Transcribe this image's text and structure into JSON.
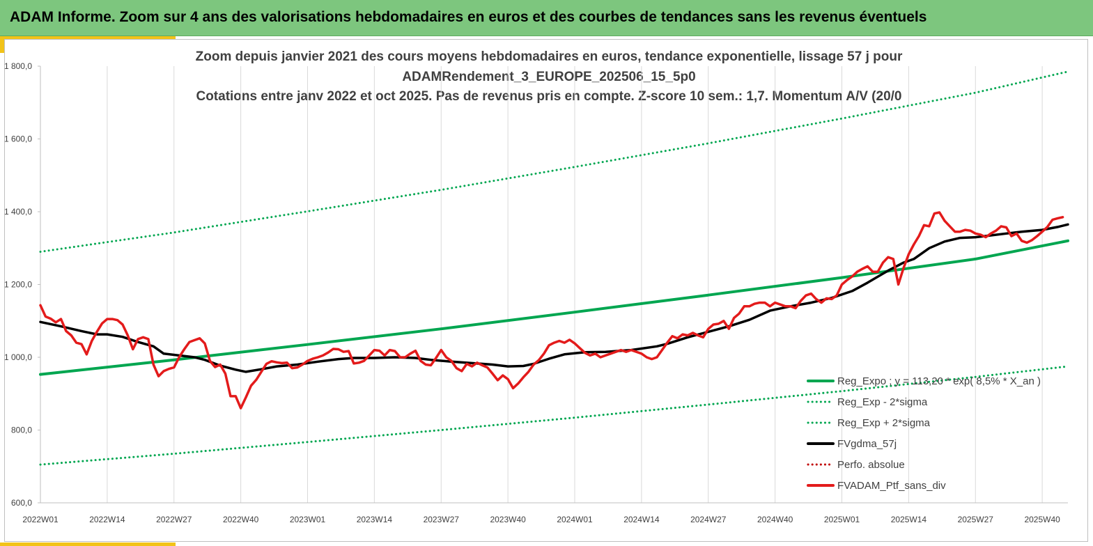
{
  "header": {
    "title": "ADAM Informe. Zoom sur 4 ans des valorisations hebdomadaires en euros et des courbes de tendances sans les revenus éventuels"
  },
  "colors": {
    "header_bg": "#7dc67e",
    "accent": "#f2c318",
    "trend": "#00a650",
    "gdma": "#000000",
    "ptf": "#e31b1b",
    "perfo": "#c00000"
  },
  "chart_data": {
    "type": "line",
    "title_lines": [
      "Zoom depuis janvier 2021 des cours moyens hebdomadaires  en euros, tendance exponentielle, lissage 57 j pour",
      "ADAMRendement_3_EUROPE_202506_15_5p0",
      "Cotations entre janv 2022 et oct 2025. Pas de revenus pris en compte. Z-score 10 sem.: 1,7. Momentum A/V (20/0"
    ],
    "y_ticks": [
      "600,0",
      "800,0",
      "1 000,0",
      "1 200,0",
      "1 400,0",
      "1 600,0",
      "1 800,0"
    ],
    "ylim": [
      600,
      1800
    ],
    "x_ticks": [
      "2022W01",
      "2022W14",
      "2022W27",
      "2022W40",
      "2023W01",
      "2023W14",
      "2023W27",
      "2023W40",
      "2024W01",
      "2024W14",
      "2024W27",
      "2024W40",
      "2025W01",
      "2025W14",
      "2025W27",
      "2025W40"
    ],
    "x_tick_weeks": [
      0,
      13,
      26,
      39,
      52,
      65,
      78,
      91,
      104,
      117,
      130,
      143,
      156,
      169,
      182,
      195
    ],
    "x_max_week": 200,
    "grid": "vertical",
    "legend": [
      {
        "key": "reg_expo",
        "label": "Reg_Expo ; y = 113,20 * exp( 8,5% *  X_an )",
        "style": "solid",
        "color": "#00a650"
      },
      {
        "key": "minus",
        "label": "Reg_Exp - 2*sigma",
        "style": "dotted",
        "color": "#00a650"
      },
      {
        "key": "plus",
        "label": "Reg_Exp + 2*sigma",
        "style": "dotted",
        "color": "#00a650"
      },
      {
        "key": "gdma",
        "label": "FVgdma_57j",
        "style": "solid",
        "color": "#000000"
      },
      {
        "key": "perfo",
        "label": "Perfo. absolue",
        "style": "dotted",
        "color": "#c00000"
      },
      {
        "key": "ptf",
        "label": "FVADAM_Ptf_sans_div",
        "style": "solid",
        "color": "#e31b1b"
      }
    ],
    "series": [
      {
        "key": "reg_expo",
        "name": "Reg_Expo",
        "style": "solid",
        "color": "#00a650",
        "width": 4,
        "points": [
          [
            0,
            953
          ],
          [
            26,
            993
          ],
          [
            52,
            1035
          ],
          [
            78,
            1078
          ],
          [
            104,
            1124
          ],
          [
            130,
            1171
          ],
          [
            156,
            1219
          ],
          [
            182,
            1270
          ],
          [
            200,
            1320
          ]
        ]
      },
      {
        "key": "plus",
        "name": "Reg_Exp + 2*sigma",
        "style": "dotted",
        "color": "#00a650",
        "width": 3,
        "points": [
          [
            0,
            1290
          ],
          [
            26,
            1343
          ],
          [
            52,
            1401
          ],
          [
            78,
            1460
          ],
          [
            104,
            1523
          ],
          [
            130,
            1588
          ],
          [
            156,
            1656
          ],
          [
            182,
            1727
          ],
          [
            200,
            1785
          ]
        ]
      },
      {
        "key": "minus",
        "name": "Reg_Exp - 2*sigma",
        "style": "dotted",
        "color": "#00a650",
        "width": 3,
        "points": [
          [
            0,
            705
          ],
          [
            26,
            735
          ],
          [
            52,
            767
          ],
          [
            78,
            800
          ],
          [
            104,
            834
          ],
          [
            130,
            870
          ],
          [
            156,
            907
          ],
          [
            182,
            946
          ],
          [
            200,
            975
          ]
        ]
      },
      {
        "key": "gdma",
        "name": "FVgdma_57j",
        "style": "solid",
        "color": "#000000",
        "width": 3.5,
        "points": [
          [
            0,
            1097
          ],
          [
            4,
            1085
          ],
          [
            8,
            1072
          ],
          [
            11,
            1063
          ],
          [
            13,
            1063
          ],
          [
            16,
            1056
          ],
          [
            19,
            1042
          ],
          [
            22,
            1030
          ],
          [
            24,
            1010
          ],
          [
            27,
            1005
          ],
          [
            30,
            1000
          ],
          [
            32,
            993
          ],
          [
            35,
            977
          ],
          [
            38,
            966
          ],
          [
            40,
            960
          ],
          [
            43,
            967
          ],
          [
            46,
            975
          ],
          [
            50,
            980
          ],
          [
            54,
            988
          ],
          [
            58,
            995
          ],
          [
            61,
            998
          ],
          [
            65,
            998
          ],
          [
            69,
            1000
          ],
          [
            73,
            998
          ],
          [
            76,
            993
          ],
          [
            80,
            988
          ],
          [
            84,
            984
          ],
          [
            88,
            980
          ],
          [
            91,
            975
          ],
          [
            94,
            976
          ],
          [
            96,
            982
          ],
          [
            99,
            996
          ],
          [
            102,
            1008
          ],
          [
            106,
            1014
          ],
          [
            110,
            1015
          ],
          [
            115,
            1020
          ],
          [
            120,
            1030
          ],
          [
            122,
            1037
          ],
          [
            126,
            1055
          ],
          [
            130,
            1070
          ],
          [
            134,
            1085
          ],
          [
            138,
            1103
          ],
          [
            142,
            1128
          ],
          [
            146,
            1140
          ],
          [
            150,
            1150
          ],
          [
            154,
            1163
          ],
          [
            158,
            1182
          ],
          [
            161,
            1205
          ],
          [
            165,
            1238
          ],
          [
            168,
            1260
          ],
          [
            170,
            1270
          ],
          [
            173,
            1300
          ],
          [
            176,
            1318
          ],
          [
            179,
            1328
          ],
          [
            182,
            1330
          ],
          [
            185,
            1335
          ],
          [
            188,
            1340
          ],
          [
            191,
            1345
          ],
          [
            195,
            1350
          ],
          [
            198,
            1358
          ],
          [
            200,
            1365
          ]
        ]
      },
      {
        "key": "ptf",
        "name": "FVADAM_Ptf_sans_div",
        "style": "solid",
        "color": "#e31b1b",
        "width": 3.5,
        "points": [
          [
            0,
            1143
          ],
          [
            1,
            1112
          ],
          [
            2,
            1106
          ],
          [
            3,
            1096
          ],
          [
            4,
            1105
          ],
          [
            5,
            1072
          ],
          [
            6,
            1060
          ],
          [
            7,
            1040
          ],
          [
            8,
            1036
          ],
          [
            9,
            1008
          ],
          [
            10,
            1045
          ],
          [
            11,
            1070
          ],
          [
            12,
            1093
          ],
          [
            13,
            1105
          ],
          [
            14,
            1105
          ],
          [
            15,
            1102
          ],
          [
            16,
            1090
          ],
          [
            17,
            1060
          ],
          [
            18,
            1022
          ],
          [
            19,
            1050
          ],
          [
            20,
            1055
          ],
          [
            21,
            1050
          ],
          [
            22,
            980
          ],
          [
            23,
            948
          ],
          [
            24,
            962
          ],
          [
            25,
            968
          ],
          [
            26,
            972
          ],
          [
            27,
            1000
          ],
          [
            28,
            1022
          ],
          [
            29,
            1042
          ],
          [
            30,
            1047
          ],
          [
            31,
            1052
          ],
          [
            32,
            1038
          ],
          [
            33,
            990
          ],
          [
            34,
            973
          ],
          [
            35,
            980
          ],
          [
            36,
            955
          ],
          [
            37,
            893
          ],
          [
            38,
            893
          ],
          [
            39,
            860
          ],
          [
            40,
            890
          ],
          [
            41,
            922
          ],
          [
            42,
            938
          ],
          [
            43,
            960
          ],
          [
            44,
            982
          ],
          [
            45,
            989
          ],
          [
            46,
            986
          ],
          [
            47,
            984
          ],
          [
            48,
            985
          ],
          [
            49,
            970
          ],
          [
            50,
            972
          ],
          [
            51,
            980
          ],
          [
            52,
            990
          ],
          [
            53,
            996
          ],
          [
            54,
            1000
          ],
          [
            55,
            1005
          ],
          [
            56,
            1013
          ],
          [
            57,
            1023
          ],
          [
            58,
            1022
          ],
          [
            59,
            1015
          ],
          [
            60,
            1017
          ],
          [
            61,
            983
          ],
          [
            62,
            985
          ],
          [
            63,
            990
          ],
          [
            64,
            1005
          ],
          [
            65,
            1020
          ],
          [
            66,
            1018
          ],
          [
            67,
            1005
          ],
          [
            68,
            1020
          ],
          [
            69,
            1017
          ],
          [
            70,
            1000
          ],
          [
            71,
            1000
          ],
          [
            72,
            1010
          ],
          [
            73,
            1018
          ],
          [
            74,
            990
          ],
          [
            75,
            980
          ],
          [
            76,
            978
          ],
          [
            77,
            998
          ],
          [
            78,
            1020
          ],
          [
            79,
            1000
          ],
          [
            80,
            990
          ],
          [
            81,
            970
          ],
          [
            82,
            962
          ],
          [
            83,
            982
          ],
          [
            84,
            975
          ],
          [
            85,
            985
          ],
          [
            86,
            978
          ],
          [
            87,
            972
          ],
          [
            88,
            955
          ],
          [
            89,
            937
          ],
          [
            90,
            950
          ],
          [
            91,
            940
          ],
          [
            92,
            915
          ],
          [
            93,
            928
          ],
          [
            94,
            945
          ],
          [
            95,
            960
          ],
          [
            96,
            980
          ],
          [
            97,
            992
          ],
          [
            98,
            1010
          ],
          [
            99,
            1033
          ],
          [
            100,
            1040
          ],
          [
            101,
            1045
          ],
          [
            102,
            1040
          ],
          [
            103,
            1048
          ],
          [
            104,
            1038
          ],
          [
            105,
            1025
          ],
          [
            106,
            1012
          ],
          [
            107,
            1005
          ],
          [
            108,
            1010
          ],
          [
            109,
            1000
          ],
          [
            110,
            1005
          ],
          [
            111,
            1010
          ],
          [
            112,
            1015
          ],
          [
            113,
            1020
          ],
          [
            114,
            1015
          ],
          [
            115,
            1020
          ],
          [
            116,
            1015
          ],
          [
            117,
            1010
          ],
          [
            118,
            1000
          ],
          [
            119,
            995
          ],
          [
            120,
            1000
          ],
          [
            121,
            1020
          ],
          [
            122,
            1040
          ],
          [
            123,
            1058
          ],
          [
            124,
            1052
          ],
          [
            125,
            1063
          ],
          [
            126,
            1060
          ],
          [
            127,
            1067
          ],
          [
            128,
            1060
          ],
          [
            129,
            1055
          ],
          [
            130,
            1078
          ],
          [
            131,
            1090
          ],
          [
            132,
            1092
          ],
          [
            133,
            1100
          ],
          [
            134,
            1078
          ],
          [
            135,
            1108
          ],
          [
            136,
            1120
          ],
          [
            137,
            1140
          ],
          [
            138,
            1140
          ],
          [
            139,
            1147
          ],
          [
            140,
            1150
          ],
          [
            141,
            1150
          ],
          [
            142,
            1140
          ],
          [
            143,
            1150
          ],
          [
            144,
            1145
          ],
          [
            145,
            1140
          ],
          [
            146,
            1140
          ],
          [
            147,
            1135
          ],
          [
            148,
            1155
          ],
          [
            149,
            1170
          ],
          [
            150,
            1175
          ],
          [
            151,
            1160
          ],
          [
            152,
            1150
          ],
          [
            153,
            1162
          ],
          [
            154,
            1160
          ],
          [
            155,
            1170
          ],
          [
            156,
            1200
          ],
          [
            157,
            1212
          ],
          [
            158,
            1222
          ],
          [
            159,
            1235
          ],
          [
            160,
            1243
          ],
          [
            161,
            1250
          ],
          [
            162,
            1235
          ],
          [
            163,
            1235
          ],
          [
            164,
            1260
          ],
          [
            165,
            1275
          ],
          [
            166,
            1270
          ],
          [
            167,
            1200
          ],
          [
            168,
            1245
          ],
          [
            169,
            1283
          ],
          [
            170,
            1310
          ],
          [
            171,
            1333
          ],
          [
            172,
            1363
          ],
          [
            173,
            1360
          ],
          [
            174,
            1395
          ],
          [
            175,
            1398
          ],
          [
            176,
            1375
          ],
          [
            177,
            1360
          ],
          [
            178,
            1345
          ],
          [
            179,
            1345
          ],
          [
            180,
            1350
          ],
          [
            181,
            1348
          ],
          [
            182,
            1340
          ],
          [
            183,
            1337
          ],
          [
            184,
            1330
          ],
          [
            185,
            1340
          ],
          [
            186,
            1348
          ],
          [
            187,
            1360
          ],
          [
            188,
            1357
          ],
          [
            189,
            1333
          ],
          [
            190,
            1340
          ],
          [
            191,
            1320
          ],
          [
            192,
            1315
          ],
          [
            193,
            1322
          ],
          [
            194,
            1333
          ],
          [
            195,
            1345
          ],
          [
            196,
            1358
          ],
          [
            197,
            1378
          ],
          [
            198,
            1382
          ],
          [
            199,
            1385
          ]
        ]
      }
    ]
  }
}
